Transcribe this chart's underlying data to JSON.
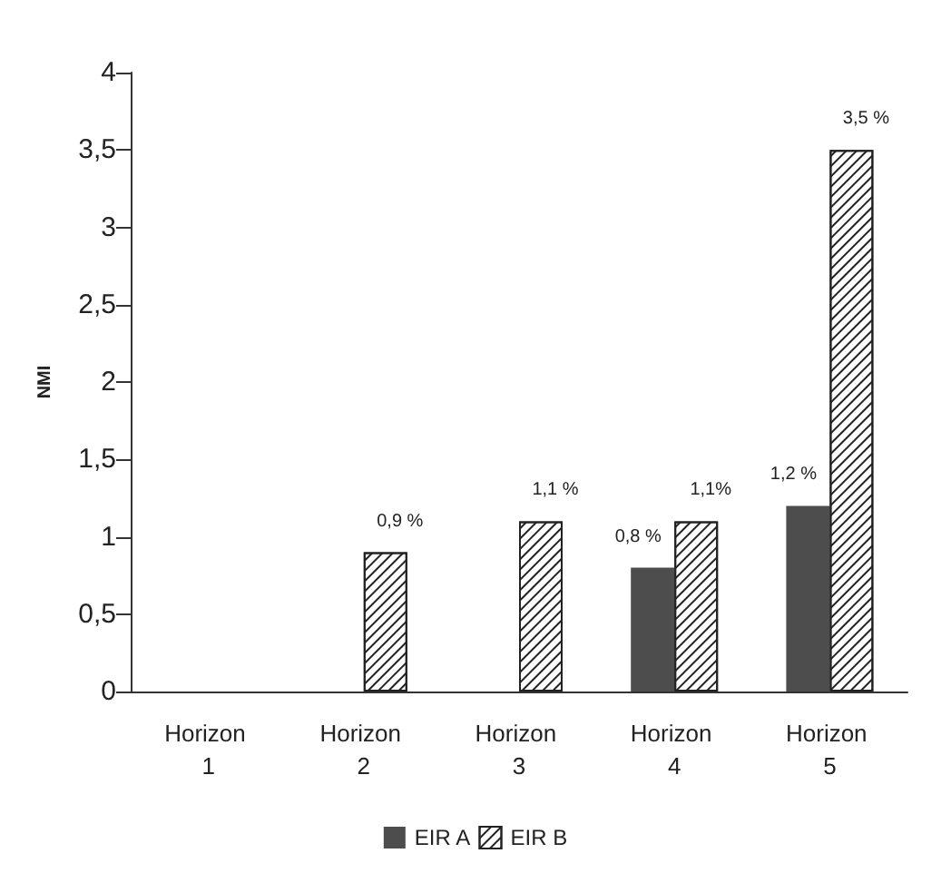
{
  "chart_data": {
    "type": "bar",
    "ylabel": "NMI",
    "categories": [
      "Horizon 1",
      "Horizon 2",
      "Horizon 3",
      "Horizon 4",
      "Horizon 5"
    ],
    "series": [
      {
        "name": "EIR A",
        "color": "#4d4d4d",
        "values": [
          null,
          null,
          null,
          0.8,
          1.2
        ],
        "value_labels": [
          null,
          null,
          null,
          "0,8 %",
          "1,2 %"
        ]
      },
      {
        "name": "EIR B",
        "color": "#222222",
        "values": [
          null,
          0.9,
          1.1,
          1.1,
          3.5
        ],
        "value_labels": [
          null,
          "0,9 %",
          "1,1 %",
          "1,1%",
          "3,5 %"
        ]
      }
    ],
    "ylim": [
      0,
      4
    ],
    "yticks": [
      0,
      {
        "value": 0.5,
        "label": "0,5"
      },
      1,
      {
        "value": 1.5,
        "label": "1,5"
      },
      2,
      {
        "value": 2.5,
        "label": "2,5"
      },
      3,
      {
        "value": 3.5,
        "label": "3,5"
      },
      4
    ],
    "grid": false,
    "legend": "bottom"
  }
}
